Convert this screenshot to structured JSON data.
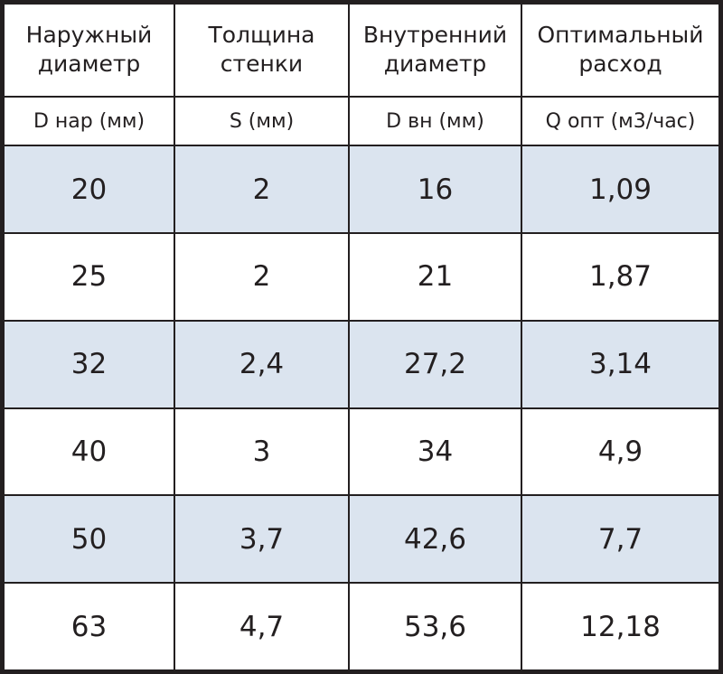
{
  "header": {
    "columns": [
      {
        "line1": "Наружный",
        "line2": "диаметр"
      },
      {
        "line1": "Толщина",
        "line2": "стенки"
      },
      {
        "line1": "Внутренний",
        "line2": "диаметр"
      },
      {
        "line1": "Оптимальный",
        "line2": "расход"
      }
    ],
    "units": [
      "D нар (мм)",
      "S (мм)",
      "D вн (мм)",
      "Q опт (м3/час)"
    ]
  },
  "rows": [
    {
      "d_outer": "20",
      "wall": "2",
      "d_inner": "16",
      "flow": "1,09"
    },
    {
      "d_outer": "25",
      "wall": "2",
      "d_inner": "21",
      "flow": "1,87"
    },
    {
      "d_outer": "32",
      "wall": "2,4",
      "d_inner": "27,2",
      "flow": "3,14"
    },
    {
      "d_outer": "40",
      "wall": "3",
      "d_inner": "34",
      "flow": "4,9"
    },
    {
      "d_outer": "50",
      "wall": "3,7",
      "d_inner": "42,6",
      "flow": "7,7"
    },
    {
      "d_outer": "63",
      "wall": "4,7",
      "d_inner": "53,6",
      "flow": "12,18"
    }
  ],
  "colors": {
    "border": "#231f20",
    "shaded_row": "#dbe4ef",
    "plain_row": "#ffffff"
  }
}
